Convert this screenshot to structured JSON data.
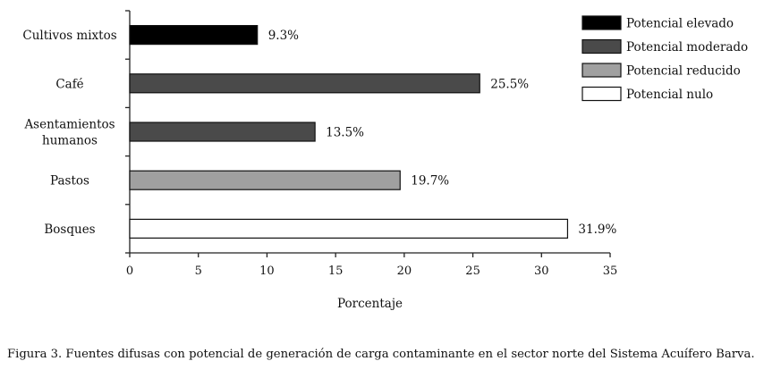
{
  "chart_data": {
    "type": "bar",
    "orientation": "horizontal",
    "categories": [
      "Cultivos mixtos",
      "Café",
      "Asentamientos humanos",
      "Pastos",
      "Bosques"
    ],
    "category_label_lines": [
      [
        "Cultivos mixtos"
      ],
      [
        "Café"
      ],
      [
        "Asentamientos",
        "humanos"
      ],
      [
        "Pastos"
      ],
      [
        "Bosques"
      ]
    ],
    "values": [
      9.3,
      25.5,
      13.5,
      19.7,
      31.9
    ],
    "data_labels": [
      "9.3%",
      "25.5%",
      "13.5%",
      "19.7%",
      "31.9%"
    ],
    "bar_legend_index": [
      0,
      1,
      1,
      2,
      3
    ],
    "xlabel": "Porcentaje",
    "ylabel": "",
    "xlim": [
      0,
      35
    ],
    "xticks": [
      0,
      5,
      10,
      15,
      20,
      25,
      30,
      35
    ],
    "grid": false,
    "legend_position": "top-right",
    "legend": [
      {
        "label": "Potencial elevado",
        "color": "#000000"
      },
      {
        "label": "Potencial moderado",
        "color": "#4a4a4a"
      },
      {
        "label": "Potencial reducido",
        "color": "#a0a0a0"
      },
      {
        "label": "Potencial nulo",
        "color": "#ffffff"
      }
    ]
  },
  "caption": "Figura 3. Fuentes difusas con potencial de generación de carga contaminante en el sector norte del Sistema Acuífero Barva."
}
